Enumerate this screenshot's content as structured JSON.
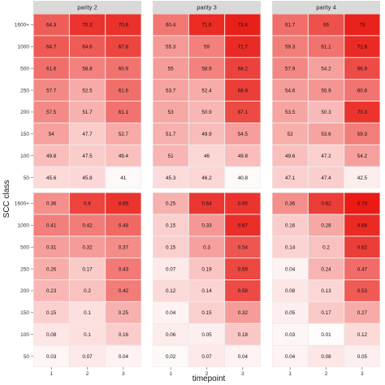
{
  "chart_data": {
    "type": "heatmap",
    "xlabel": "timepoint",
    "ylabel": "SCC class",
    "x_categories": [
      "1",
      "2",
      "3"
    ],
    "y_categories": [
      "1600+",
      "1000",
      "500",
      "250",
      "200",
      "150",
      "100",
      "50"
    ],
    "facets": [
      "parity 2",
      "parity 3",
      "parity 4"
    ],
    "colors": {
      "low": "#ffffff",
      "high": "#e8150e",
      "panel_bg": "#ebebeb",
      "strip_bg": "#d9d9d9"
    },
    "panels": [
      {
        "row": "top",
        "facet": "parity 2",
        "scale": [
          40,
          75
        ],
        "values": [
          [
            "64.3",
            "70.3",
            "70.8"
          ],
          [
            "64.7",
            "64.6",
            "67.8"
          ],
          [
            "61.6",
            "58.8",
            "60.9"
          ],
          [
            "57.7",
            "52.5",
            "61.6"
          ],
          [
            "57.5",
            "51.7",
            "61.1"
          ],
          [
            "54",
            "47.7",
            "52.7"
          ],
          [
            "49.8",
            "47.5",
            "49.4"
          ],
          [
            "45.6",
            "45.8",
            "41"
          ]
        ]
      },
      {
        "row": "top",
        "facet": "parity 3",
        "scale": [
          40,
          75
        ],
        "values": [
          [
            "60.4",
            "71.6",
            "73.4"
          ],
          [
            "55.3",
            "59",
            "71.7"
          ],
          [
            "55",
            "58.9",
            "68.2"
          ],
          [
            "53.7",
            "52.4",
            "68.9"
          ],
          [
            "53",
            "50.9",
            "67.1"
          ],
          [
            "51.7",
            "49.9",
            "54.5"
          ],
          [
            "51",
            "46",
            "49.8"
          ],
          [
            "45.3",
            "46.2",
            "40.8"
          ]
        ]
      },
      {
        "row": "top",
        "facet": "parity 4",
        "scale": [
          40,
          75
        ],
        "values": [
          [
            "61.7",
            "66",
            "73"
          ],
          [
            "59.3",
            "61.1",
            "71.8"
          ],
          [
            "57.9",
            "54.2",
            "66.9"
          ],
          [
            "54.6",
            "55.9",
            "60.8"
          ],
          [
            "53.5",
            "50.3",
            "70.3"
          ],
          [
            "52",
            "53.6",
            "59.3"
          ],
          [
            "49.6",
            "47.2",
            "54.2"
          ],
          [
            "47.1",
            "47.4",
            "42.5"
          ]
        ]
      },
      {
        "row": "bottom",
        "facet": "parity 2",
        "scale": [
          0,
          0.75
        ],
        "values": [
          [
            "0.36",
            "0.6",
            "0.65"
          ],
          [
            "0.41",
            "0.42",
            "0.48"
          ],
          [
            "0.31",
            "0.32",
            "0.37"
          ],
          [
            "0.26",
            "0.17",
            "0.43"
          ],
          [
            "0.23",
            "0.2",
            "0.42"
          ],
          [
            "0.15",
            "0.1",
            "0.25"
          ],
          [
            "0.08",
            "0.1",
            "0.16"
          ],
          [
            "0.03",
            "0.07",
            "0.04"
          ]
        ]
      },
      {
        "row": "bottom",
        "facet": "parity 3",
        "scale": [
          0,
          0.75
        ],
        "values": [
          [
            "0.25",
            "0.64",
            "0.65"
          ],
          [
            "0.15",
            "0.33",
            "0.67"
          ],
          [
            "0.15",
            "0.3",
            "0.54"
          ],
          [
            "0.07",
            "0.19",
            "0.59"
          ],
          [
            "0.12",
            "0.14",
            "0.58"
          ],
          [
            "0.04",
            "0.15",
            "0.32"
          ],
          [
            "0.06",
            "0.05",
            "0.18"
          ],
          [
            "0.02",
            "0.07",
            "0.04"
          ]
        ]
      },
      {
        "row": "bottom",
        "facet": "parity 4",
        "scale": [
          0,
          0.75
        ],
        "values": [
          [
            "0.36",
            "0.62",
            "0.73"
          ],
          [
            "0.16",
            "0.28",
            "0.68"
          ],
          [
            "0.14",
            "0.2",
            "0.62"
          ],
          [
            "0.04",
            "0.24",
            "0.47"
          ],
          [
            "0.08",
            "0.13",
            "0.53"
          ],
          [
            "0.05",
            "0.17",
            "0.27"
          ],
          [
            "0.03",
            "0.01",
            "0.12"
          ],
          [
            "0.04",
            "0.08",
            "0.05"
          ]
        ]
      }
    ]
  }
}
